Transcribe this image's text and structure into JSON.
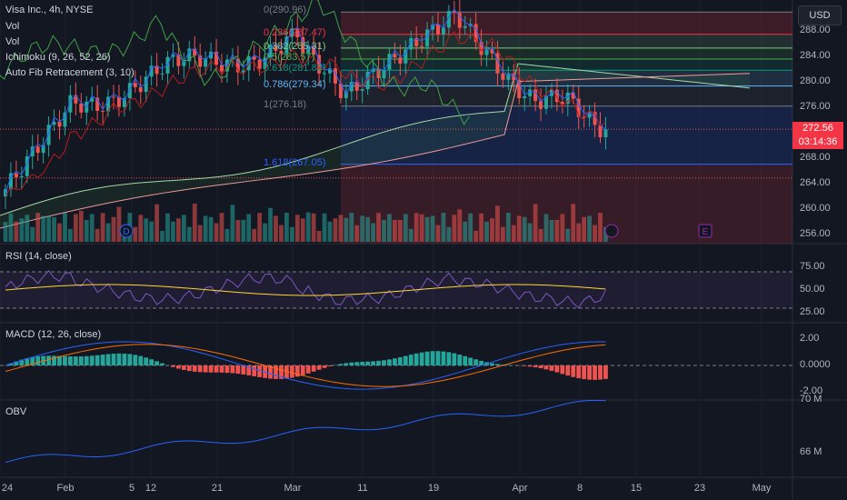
{
  "header": {
    "symbol_line": "Visa Inc., 4h, NYSE",
    "indicators": [
      "Vol",
      "Vol",
      "Ichimoku (9, 26, 52, 26)",
      "Auto Fib Retracement (3, 10)"
    ]
  },
  "currency_button": "USD",
  "fib_levels": [
    {
      "label": "0(290.96)",
      "price": 290.96,
      "color": "#787b86"
    },
    {
      "label": "0.236(287.47)",
      "price": 287.47,
      "color": "#f23645"
    },
    {
      "label": "0.382(285.31)",
      "price": 285.31,
      "color": "#81c784"
    },
    {
      "label": "0.5(283.57)",
      "price": 283.57,
      "color": "#4caf50"
    },
    {
      "label": "0.618(281.83)",
      "price": 281.83,
      "color": "#089981"
    },
    {
      "label": "0.786(279.34)",
      "price": 279.34,
      "color": "#64b5f6"
    },
    {
      "label": "1(276.18)",
      "price": 276.18,
      "color": "#787b86"
    },
    {
      "label": "1.618(267.05)",
      "price": 267.05,
      "color": "#2962ff"
    }
  ],
  "price_axis": [
    "288.00",
    "284.00",
    "280.00",
    "276.00",
    "268.00",
    "264.00",
    "260.00",
    "256.00"
  ],
  "last_price": {
    "value": "272.56",
    "countdown": "03:14:36",
    "color": "#f23645"
  },
  "event_markers": [
    "D",
    "E"
  ],
  "rsi": {
    "label": "RSI (14, close)",
    "axis": [
      "75.00",
      "50.00",
      "25.00"
    ]
  },
  "macd": {
    "label": "MACD (12, 26, close)",
    "axis": [
      "2.00",
      "0.0000",
      "-2.00"
    ]
  },
  "obv": {
    "label": "OBV",
    "axis": [
      "70 M",
      "66 M"
    ]
  },
  "time_axis": [
    "24",
    "Feb",
    "5",
    "12",
    "21",
    "Mar",
    "11",
    "19",
    "Apr",
    "8",
    "15",
    "23",
    "May"
  ],
  "colors": {
    "up": "#26a69a",
    "down": "#ef5350",
    "background": "#131722",
    "rsi": "#7e57c2",
    "rsi_ma": "#fdd835",
    "macd": "#2962ff",
    "signal": "#ff6d00",
    "obv": "#2962ff"
  }
}
